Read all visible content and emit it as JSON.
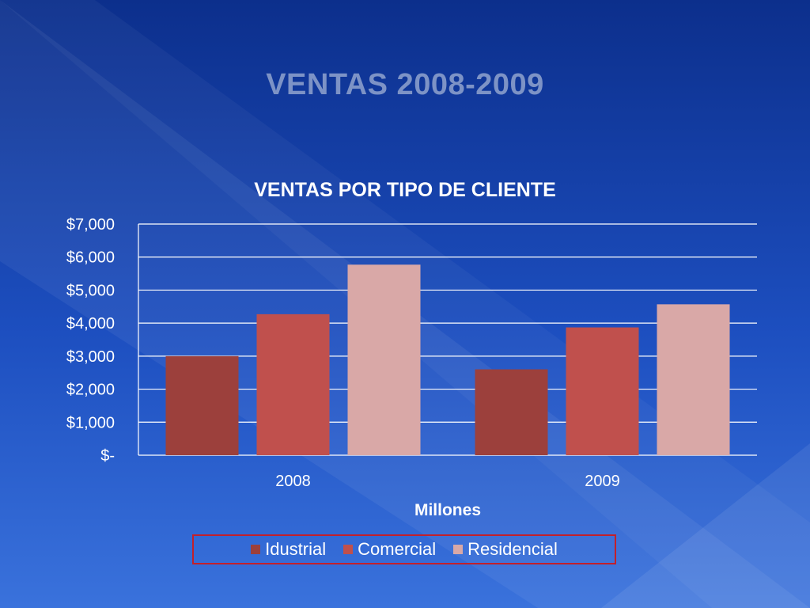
{
  "slide": {
    "title": "VENTAS 2008-2009"
  },
  "chart_data": {
    "type": "bar",
    "title": "VENTAS POR TIPO DE CLIENTE",
    "xlabel": "Millones",
    "ylabel": "",
    "categories": [
      "2008",
      "2009"
    ],
    "series": [
      {
        "name": "Idustrial",
        "values": [
          3000,
          2600
        ],
        "color": "#9c403c"
      },
      {
        "name": "Comercial",
        "values": [
          4270,
          3870
        ],
        "color": "#c0504d"
      },
      {
        "name": "Residencial",
        "values": [
          5770,
          4570
        ],
        "color": "#d9a8a7"
      }
    ],
    "ylim": [
      0,
      7000
    ],
    "yticks": [
      0,
      1000,
      2000,
      3000,
      4000,
      5000,
      6000,
      7000
    ],
    "ytick_labels": [
      "$-",
      "$1,000",
      "$2,000",
      "$3,000",
      "$4,000",
      "$5,000",
      "$6,000",
      "$7,000"
    ],
    "grid": true,
    "legend_position": "bottom"
  }
}
